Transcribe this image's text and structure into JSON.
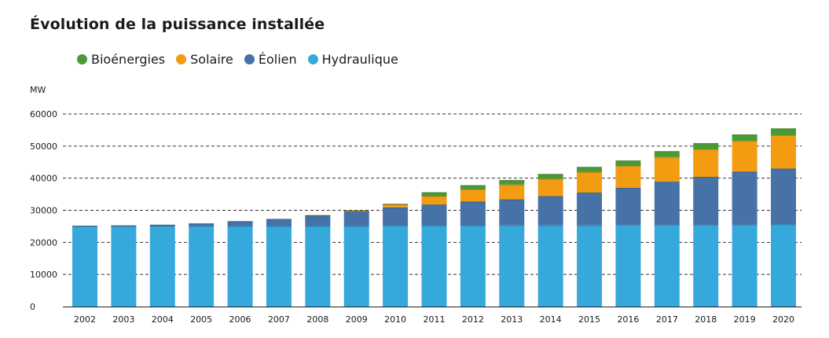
{
  "chart_data": {
    "type": "bar",
    "stacked": true,
    "title": "Évolution de la puissance installée",
    "ylabel": "MW",
    "xlabel": "",
    "ylim": [
      0,
      60000
    ],
    "yticks": [
      0,
      10000,
      20000,
      30000,
      40000,
      50000,
      60000
    ],
    "ytick_labels": [
      "0",
      "10000",
      "20000",
      "30000",
      "40000",
      "50000",
      "60000"
    ],
    "grid": "dashed-horizontal",
    "legend_position": "top-left",
    "categories": [
      "2002",
      "2003",
      "2004",
      "2005",
      "2006",
      "2007",
      "2008",
      "2009",
      "2010",
      "2011",
      "2012",
      "2013",
      "2014",
      "2015",
      "2016",
      "2017",
      "2018",
      "2019",
      "2020"
    ],
    "series": [
      {
        "name": "Hydraulique",
        "color": "#35a9dc",
        "values": [
          25000,
          25000,
          25100,
          25100,
          25100,
          25100,
          25100,
          25100,
          25200,
          25200,
          25200,
          25300,
          25300,
          25300,
          25400,
          25400,
          25400,
          25500,
          25600
        ]
      },
      {
        "name": "Éolien",
        "color": "#4672a8",
        "values": [
          200,
          300,
          400,
          800,
          1500,
          2200,
          3300,
          4500,
          5700,
          6600,
          7500,
          8100,
          9100,
          10200,
          11600,
          13500,
          15000,
          16500,
          17400
        ]
      },
      {
        "name": "Solaire",
        "color": "#f39c12",
        "values": [
          0,
          0,
          0,
          0,
          0,
          0,
          100,
          300,
          900,
          2600,
          3800,
          4600,
          5400,
          6400,
          6800,
          7700,
          8600,
          9600,
          10400
        ]
      },
      {
        "name": "Bioénergies",
        "color": "#4a9a36",
        "values": [
          0,
          0,
          0,
          0,
          0,
          0,
          0,
          100,
          200,
          1200,
          1300,
          1400,
          1500,
          1600,
          1700,
          1800,
          1900,
          2000,
          2100
        ]
      }
    ],
    "legend_order": [
      "Bioénergies",
      "Solaire",
      "Éolien",
      "Hydraulique"
    ]
  }
}
